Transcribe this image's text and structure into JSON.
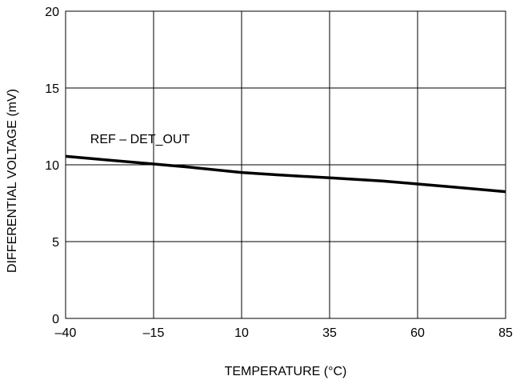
{
  "chart_data": {
    "type": "line",
    "title": "",
    "xlabel": "TEMPERATURE (°C)",
    "ylabel": "DIFFERENTIAL VOLTAGE (mV)",
    "xlim": [
      -40,
      85
    ],
    "ylim": [
      0,
      20
    ],
    "x_ticks": [
      -40,
      -15,
      10,
      35,
      60,
      85
    ],
    "y_ticks": [
      0,
      5,
      10,
      15,
      20
    ],
    "x_tick_labels": [
      "–40",
      "–15",
      "10",
      "35",
      "60",
      "85"
    ],
    "y_tick_labels": [
      "0",
      "5",
      "10",
      "15",
      "20"
    ],
    "grid": true,
    "annotations": [
      {
        "text": "REF – DET_OUT",
        "x": -33,
        "y": 11.4
      }
    ],
    "series": [
      {
        "x": [
          -40,
          -30,
          -15,
          -5,
          10,
          20,
          35,
          50,
          60,
          70,
          85
        ],
        "values": [
          10.55,
          10.35,
          10.05,
          9.85,
          9.5,
          9.35,
          9.15,
          8.95,
          8.75,
          8.55,
          8.25
        ]
      }
    ]
  }
}
